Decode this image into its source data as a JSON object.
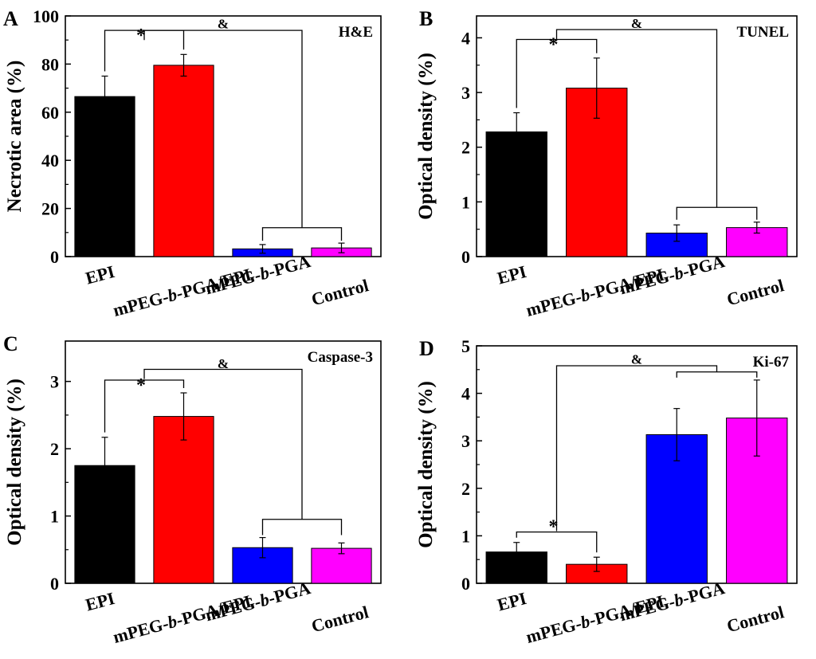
{
  "chart_data": [
    {
      "type": "bar",
      "panel_letter": "A",
      "title": "H&E",
      "xlabel": "",
      "ylabel": "Necrotic area (%)",
      "ylim": [
        0,
        100
      ],
      "yticks": [
        0,
        20,
        40,
        60,
        80,
        100
      ],
      "categories": [
        "EPI",
        "mPEG-b-PGA/EPI",
        "mPEG-b-PGA",
        "Control"
      ],
      "values": [
        66.5,
        79.5,
        3.2,
        3.6
      ],
      "errors": [
        8.5,
        4.5,
        1.8,
        2.0
      ],
      "colors": [
        "#000000",
        "#ff0000",
        "#0000ff",
        "#ff00ff"
      ],
      "significance": [
        {
          "symbol": "*",
          "left": [
            0
          ],
          "right": [
            1
          ],
          "level": 94
        },
        {
          "symbol": "&",
          "left": [
            0,
            1
          ],
          "right": [
            2,
            3
          ],
          "level": 94,
          "right_level": 12,
          "label_level": 96.8
        }
      ]
    },
    {
      "type": "bar",
      "panel_letter": "B",
      "title": "TUNEL",
      "xlabel": "",
      "ylabel": "Optical density (%)",
      "ylim": [
        0,
        4.4
      ],
      "yticks": [
        0,
        1,
        2,
        3,
        4
      ],
      "categories": [
        "EPI",
        "mPEG-b-PGA/EPI",
        "mPEG-b-PGA",
        "Control"
      ],
      "values": [
        2.28,
        3.08,
        0.43,
        0.53
      ],
      "errors": [
        0.35,
        0.55,
        0.15,
        0.1
      ],
      "colors": [
        "#000000",
        "#ff0000",
        "#0000ff",
        "#ff00ff"
      ],
      "significance": [
        {
          "symbol": "*",
          "left": [
            0
          ],
          "right": [
            1
          ],
          "level": 3.97
        },
        {
          "symbol": "&",
          "left": [
            0,
            1
          ],
          "right": [
            2,
            3
          ],
          "level": 4.15,
          "right_level": 0.9,
          "label_level": 4.27
        }
      ]
    },
    {
      "type": "bar",
      "panel_letter": "C",
      "title": "Caspase-3",
      "xlabel": "",
      "ylabel": "Optical density (%)",
      "ylim": [
        0,
        3.6
      ],
      "yticks": [
        0,
        1,
        2,
        3
      ],
      "categories": [
        "EPI",
        "mPEG-b-PGA/EPI",
        "mPEG-b-PGA",
        "Control"
      ],
      "values": [
        1.75,
        2.48,
        0.53,
        0.52
      ],
      "errors": [
        0.42,
        0.35,
        0.15,
        0.08
      ],
      "colors": [
        "#000000",
        "#ff0000",
        "#0000ff",
        "#ff00ff"
      ],
      "significance": [
        {
          "symbol": "*",
          "left": [
            0
          ],
          "right": [
            1
          ],
          "level": 3.02
        },
        {
          "symbol": "&",
          "left": [
            0,
            1
          ],
          "right": [
            2,
            3
          ],
          "level": 3.18,
          "right_level": 0.95,
          "label_level": 3.27
        }
      ]
    },
    {
      "type": "bar",
      "panel_letter": "D",
      "title": "Ki-67",
      "xlabel": "",
      "ylabel": "Optical density (%)",
      "ylim": [
        0,
        5.0
      ],
      "yticks": [
        0,
        1,
        2,
        3,
        4,
        5
      ],
      "categories": [
        "EPI",
        "mPEG-b-PGA/EPI",
        "mPEG-b-PGA",
        "Control"
      ],
      "values": [
        0.66,
        0.4,
        3.13,
        3.48
      ],
      "errors": [
        0.2,
        0.15,
        0.55,
        0.8
      ],
      "colors": [
        "#000000",
        "#ff0000",
        "#0000ff",
        "#ff00ff"
      ],
      "significance": [
        {
          "symbol": "*",
          "left": [
            0
          ],
          "right": [
            1
          ],
          "level": 1.08,
          "label_level": 1.2
        },
        {
          "symbol": "&",
          "left": [
            0,
            1
          ],
          "right": [
            2,
            3
          ],
          "level": 4.58,
          "left_level": 1.1,
          "right_level": 4.45,
          "label_level": 4.72
        }
      ]
    }
  ]
}
